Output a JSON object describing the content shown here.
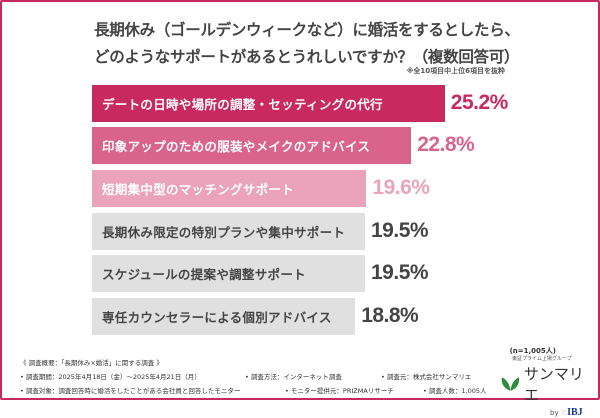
{
  "title_line1": "長期休み（ゴールデンウィークなど）に婚活をするとしたら、",
  "title_line2": "どのようなサポートがあるとうれしいですか？（複数回答可）",
  "note": "※全10項目中上位6項目を抜粋",
  "sample": "(n=1,005人)",
  "chart_data": {
    "type": "bar",
    "orientation": "horizontal",
    "categories": [
      "デートの日時や場所の調整・セッティングの代行",
      "印象アップのための服装やメイクのアドバイス",
      "短期集中型のマッチングサポート",
      "長期休み限定の特別プランや集中サポート",
      "スケジュールの提案や調整サポート",
      "専任カウンセラーによる個別アドバイス"
    ],
    "values": [
      25.2,
      22.8,
      19.6,
      19.5,
      19.5,
      18.8
    ],
    "labels": [
      "25.2%",
      "22.8%",
      "19.6%",
      "19.5%",
      "19.5%",
      "18.8%"
    ],
    "unit": "%",
    "bar_colors": [
      "#c8295f",
      "#d9638b",
      "#eaa3bb",
      "#e0e0e0",
      "#e0e0e0",
      "#e0e0e0"
    ],
    "text_colors": [
      "#ffffff",
      "#ffffff",
      "#ffffff",
      "#444444",
      "#444444",
      "#444444"
    ],
    "value_colors": [
      "#c8295f",
      "#d9638b",
      "#eaa3bb",
      "#444444",
      "#444444",
      "#444444"
    ]
  },
  "footer": {
    "heading": "《 調査概要：「長期休み×婚活」に関する調査 》",
    "period": "• 調査期間：2025年4月18日（金）～2025年4月21日（月）",
    "method": "• 調査方法：インターネット調査",
    "source": "• 調査元：株式会社サンマリエ",
    "target": "• 調査対象：調査回答時に婚活をしたことがある会社員と回答したモニター",
    "provider": "• モニター提供元：PRIZMAリサーチ",
    "count": "• 調査人数：1,005人"
  },
  "logo": {
    "group": "東証プライム上場グループ",
    "name": "サンマリエ",
    "by": "by",
    "ibj": "IBJ",
    "icon": "leaf-icon"
  }
}
